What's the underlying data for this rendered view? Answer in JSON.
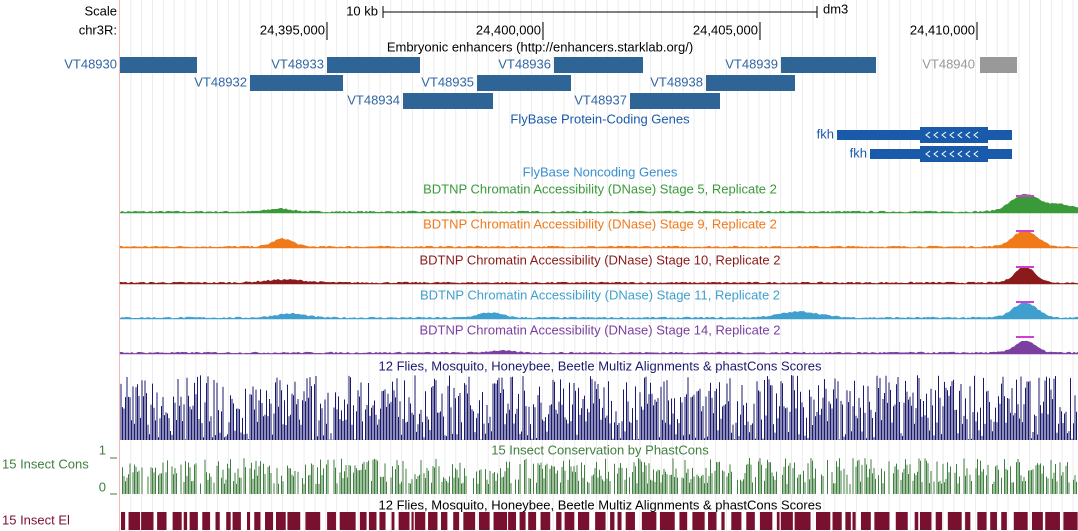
{
  "ruler": {
    "scale_label": "Scale",
    "span": "10 kb",
    "assembly": "dm3",
    "chrom": "chr3R:",
    "positions": [
      "24,395,000",
      "24,400,000",
      "24,405,000",
      "24,410,000"
    ]
  },
  "enhancers": {
    "title": "Embryonic enhancers (http://enhancers.starklab.org/)",
    "items": [
      "VT48930",
      "VT48932",
      "VT48933",
      "VT48934",
      "VT48935",
      "VT48936",
      "VT48937",
      "VT48938",
      "VT48939",
      "VT48940"
    ]
  },
  "protein_coding": {
    "title": "FlyBase Protein-Coding Genes",
    "genes": [
      "fkh",
      "fkh"
    ]
  },
  "noncoding": {
    "title": "FlyBase Noncoding Genes"
  },
  "dnase": [
    "BDTNP Chromatin Accessibility (DNase) Stage 5, Replicate 2",
    "BDTNP Chromatin Accessibility (DNase) Stage 9, Replicate 2",
    "BDTNP Chromatin Accessibility (DNase) Stage 10, Replicate 2",
    "BDTNP Chromatin Accessibility (DNase) Stage 11, Replicate 2",
    "BDTNP Chromatin Accessibility (DNase) Stage 14, Replicate 2"
  ],
  "multiz": {
    "title": "12 Flies, Mosquito, Honeybee, Beetle Multiz Alignments & phastCons Scores"
  },
  "insect_cons": {
    "title": "15 Insect Conservation by PhastCons",
    "label": "15 Insect Cons",
    "axis": [
      "1",
      "0"
    ]
  },
  "multiz_2": {
    "title": "12 Flies, Mosquito, Honeybee, Beetle Multiz Alignments & phastCons Scores"
  },
  "insect_el": {
    "label": "15 Insect El"
  }
}
